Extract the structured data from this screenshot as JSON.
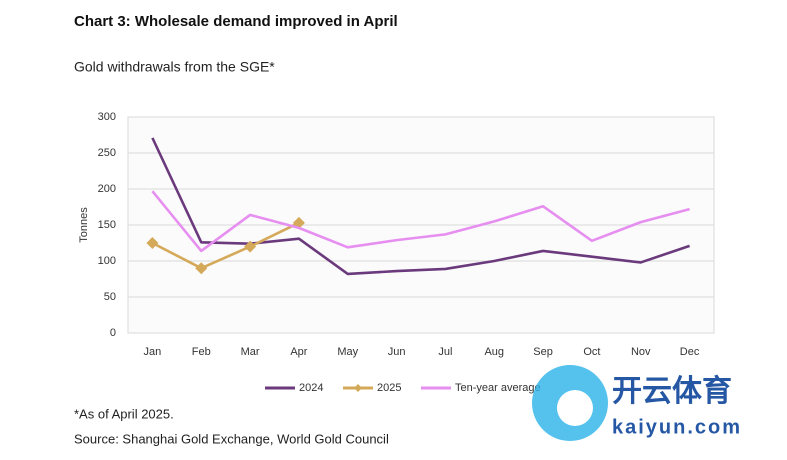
{
  "chart_data": {
    "type": "line",
    "title": "Chart 3: Wholesale demand improved in April",
    "subtitle": "Gold withdrawals from the SGE*",
    "y_label": "Tonnes",
    "categories": [
      "Jan",
      "Feb",
      "Mar",
      "Apr",
      "May",
      "Jun",
      "Jul",
      "Aug",
      "Sep",
      "Oct",
      "Nov",
      "Dec"
    ],
    "series": [
      {
        "name": "2024",
        "color": "#6b3a7d",
        "marker": "none",
        "values": [
          271,
          126,
          124,
          131,
          82,
          86,
          89,
          100,
          114,
          106,
          98,
          121
        ]
      },
      {
        "name": "2025",
        "color": "#d4a95a",
        "marker": "diamond",
        "values": [
          125,
          90,
          120,
          153,
          null,
          null,
          null,
          null,
          null,
          null,
          null,
          null
        ]
      },
      {
        "name": "Ten-year average",
        "color": "#e68ff0",
        "marker": "none",
        "values": [
          197,
          114,
          164,
          146,
          119,
          129,
          137,
          155,
          176,
          128,
          154,
          172
        ]
      }
    ],
    "ylim": [
      0,
      300
    ],
    "yticks": [
      0,
      50,
      100,
      150,
      200,
      250,
      300
    ],
    "grid": true,
    "legend": "bottom",
    "notes": [
      "*As of April 2025.",
      "Source: Shanghai Gold Exchange, World Gold Council"
    ]
  },
  "watermark": {
    "brand": "开云体育",
    "site": "kaiyun.com"
  }
}
